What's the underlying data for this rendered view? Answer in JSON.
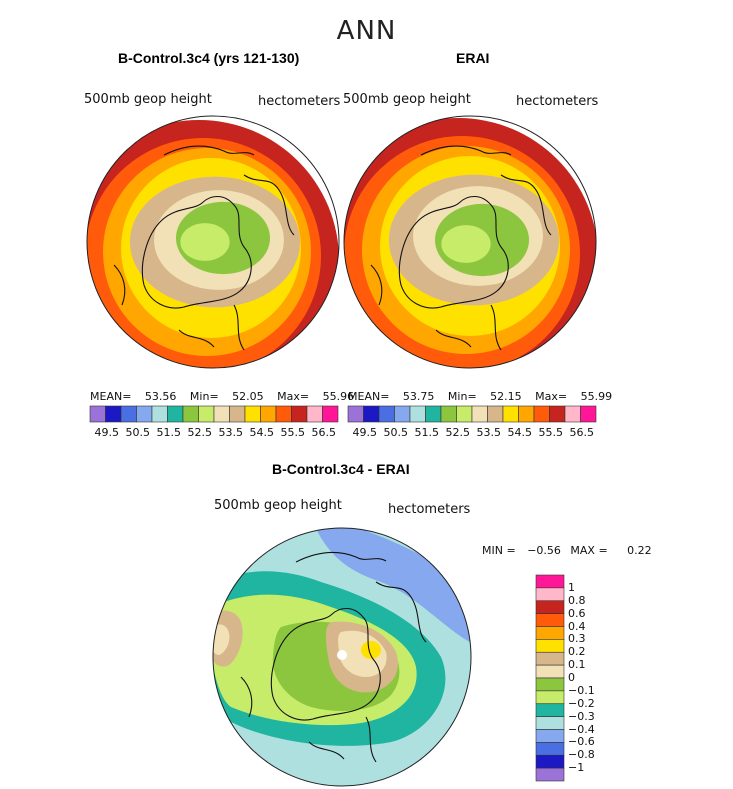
{
  "main_title": "ANN",
  "chart_data": [
    {
      "type": "heatmap",
      "title": "B-Control.3c4 (yrs 121-130)",
      "subtitle_left": "500mb geop height",
      "subtitle_right": "hectometers",
      "stats": {
        "mean_label": "MEAN=",
        "mean": "53.56",
        "min_label": "Min=",
        "min": "52.05",
        "max_label": "Max=",
        "max": "55.96"
      },
      "contour_levels": [
        "49.5",
        "50.5",
        "51.5",
        "52.5",
        "53.5",
        "54.5",
        "55.5",
        "56.5"
      ],
      "colorbar_colors": [
        "#9b72d8",
        "#1c18c4",
        "#4a6fe2",
        "#86a8ee",
        "#aee0e0",
        "#1fb5a0",
        "#8cc63f",
        "#c6ec6a",
        "#f2e1b6",
        "#d7b68c",
        "#ffe100",
        "#ffa600",
        "#ff5b0a",
        "#c5251e",
        "#ffb7c9",
        "#ff1797"
      ],
      "zone_colors": [
        "#c5251e",
        "#ff5b0a",
        "#ffa600",
        "#ffe100",
        "#d7b68c",
        "#f2e1b6",
        "#8cc63f",
        "#c6ec6a"
      ]
    },
    {
      "type": "heatmap",
      "title": "ERAI",
      "subtitle_left": "500mb geop height",
      "subtitle_right": "hectometers",
      "stats": {
        "mean_label": "MEAN=",
        "mean": "53.75",
        "min_label": "Min=",
        "min": "52.15",
        "max_label": "Max=",
        "max": "55.99"
      },
      "contour_levels": [
        "49.5",
        "50.5",
        "51.5",
        "52.5",
        "53.5",
        "54.5",
        "55.5",
        "56.5"
      ],
      "colorbar_colors": [
        "#9b72d8",
        "#1c18c4",
        "#4a6fe2",
        "#86a8ee",
        "#aee0e0",
        "#1fb5a0",
        "#8cc63f",
        "#c6ec6a",
        "#f2e1b6",
        "#d7b68c",
        "#ffe100",
        "#ffa600",
        "#ff5b0a",
        "#c5251e",
        "#ffb7c9",
        "#ff1797"
      ],
      "zone_colors": [
        "#c5251e",
        "#ff5b0a",
        "#ffa600",
        "#ffe100",
        "#d7b68c",
        "#f2e1b6",
        "#8cc63f",
        "#c6ec6a"
      ]
    },
    {
      "type": "heatmap",
      "title": "B-Control.3c4 - ERAI",
      "subtitle_left": "500mb geop height",
      "subtitle_right": "hectometers",
      "stats": {
        "min_label": "MIN =",
        "min": "−0.56",
        "max_label": "MAX =",
        "max": "0.22"
      },
      "contour_levels": [
        "1",
        "0.8",
        "0.6",
        "0.4",
        "0.3",
        "0.2",
        "0.1",
        "0",
        "−0.1",
        "−0.2",
        "−0.3",
        "−0.4",
        "−0.6",
        "−0.8",
        "−1"
      ],
      "colorbar_colors": [
        "#ff1797",
        "#ffb7c9",
        "#c5251e",
        "#ff5b0a",
        "#ffa600",
        "#ffe100",
        "#d7b68c",
        "#f2e1b6",
        "#8cc63f",
        "#c6ec6a",
        "#1fb5a0",
        "#aee0e0",
        "#86a8ee",
        "#4a6fe2",
        "#1c18c4",
        "#9b72d8"
      ]
    }
  ]
}
